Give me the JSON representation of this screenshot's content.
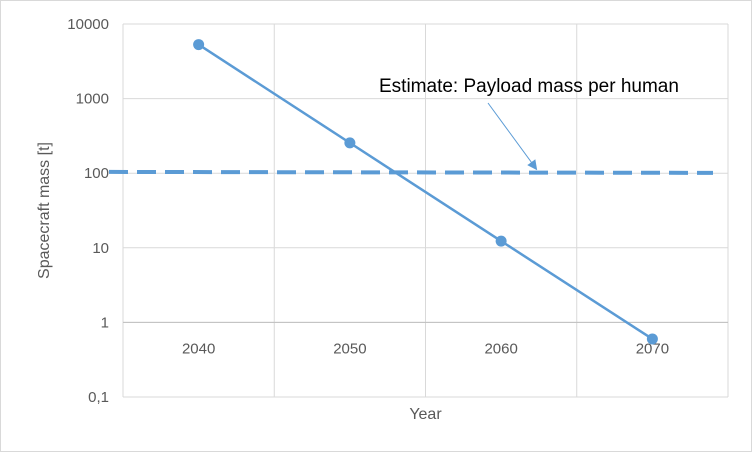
{
  "chart_data": {
    "type": "line",
    "title": "",
    "xlabel": "Year",
    "ylabel": "Spacecraft mass [t]",
    "y_scale": "log",
    "ylim": [
      0.1,
      10000
    ],
    "y_tick_labels": [
      "0,1",
      "1",
      "10",
      "100",
      "1000",
      "10000"
    ],
    "y_tick_values": [
      0.1,
      1,
      10,
      100,
      1000,
      10000
    ],
    "categories": [
      "2040",
      "2050",
      "2060",
      "2070"
    ],
    "category_axis_crosses_at": 1,
    "grid": true,
    "series": [
      {
        "values": [
          5300,
          255,
          12.3,
          0.6
        ],
        "color": "#5b9bd5",
        "style": "solid",
        "markers": true
      }
    ],
    "reference_lines": [
      {
        "y": 104,
        "y_end": 101,
        "color": "#5b9bd5",
        "style": "dashed"
      }
    ],
    "annotations": [
      {
        "text": "Estimate: Payload mass per human",
        "points_to": "dashed-line"
      }
    ]
  }
}
